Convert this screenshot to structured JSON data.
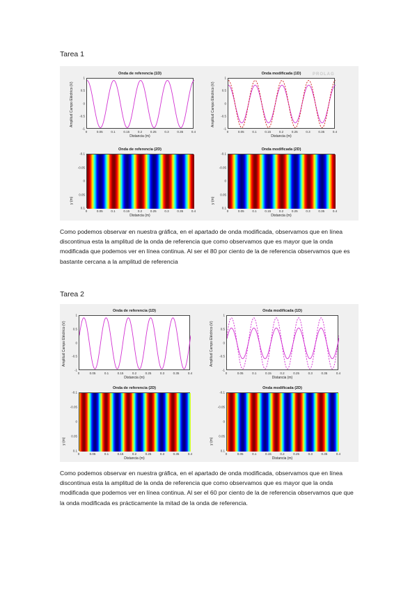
{
  "tarea1": {
    "heading": "Tarea 1",
    "watermark": "PROLAG",
    "panels": [
      {
        "title": "Onda de referencia (1D)",
        "xlabel": "Distancia (m)",
        "ylabel": "Amplitud Campo Eléctrico (V)",
        "xticks": [
          "0",
          "0.05",
          "0.1",
          "0.15",
          "0.2",
          "0.25",
          "0.3",
          "0.35",
          "0.4"
        ],
        "yticks": [
          "1",
          "0.5",
          "0",
          "-0.5",
          "-1"
        ]
      },
      {
        "title": "Onda modificada (1D)",
        "xlabel": "Distancia (m)",
        "ylabel": "Amplitud Campo Eléctrico (V)",
        "xticks": [
          "0",
          "0.05",
          "0.1",
          "0.15",
          "0.2",
          "0.25",
          "0.3",
          "0.35",
          "0.4"
        ],
        "yticks": [
          "1",
          "0.5",
          "0",
          "-0.5",
          "-1"
        ]
      },
      {
        "title": "Onda de referencia (2D)",
        "xlabel": "Distancia (m)",
        "ylabel": "y (m)",
        "xticks": [
          "0",
          "0.05",
          "0.1",
          "0.15",
          "0.2",
          "0.25",
          "0.3",
          "0.35",
          "0.4"
        ],
        "yticks": [
          "-0.1",
          "-0.05",
          "0",
          "0.05",
          "0.1"
        ]
      },
      {
        "title": "Onda modificada (2D)",
        "xlabel": "Distancia (m)",
        "ylabel": "y (m)",
        "xticks": [
          "0",
          "0.05",
          "0.1",
          "0.15",
          "0.2",
          "0.25",
          "0.3",
          "0.35",
          "0.4"
        ],
        "yticks": [
          "-0.1",
          "-0.05",
          "0",
          "0.05",
          "0.1"
        ]
      }
    ],
    "paragraph": "Como podemos observar en nuestra gráfica, en el apartado de onda modificada, observamos que en línea discontinua esta la amplitud de la onda de referencia que como observamos que es mayor que la onda modificada que podemos ver en línea continua. Al ser el 80 por ciento de la de referencia observamos que es bastante cercana a la amplitud de referencia"
  },
  "tarea2": {
    "heading": "Tarea 2",
    "panels": [
      {
        "title": "Onda de referencia (1D)",
        "xlabel": "Distancia (m)",
        "ylabel": "Amplitud Campo Eléctrico (V)",
        "xticks": [
          "0",
          "0.05",
          "0.1",
          "0.15",
          "0.2",
          "0.25",
          "0.3",
          "0.35",
          "0.4"
        ],
        "yticks": [
          "1",
          "0.5",
          "0",
          "-0.5",
          "-1"
        ]
      },
      {
        "title": "Onda modificada (1D)",
        "xlabel": "Distancia (m)",
        "ylabel": "Amplitud Campo Eléctrico (V)",
        "xticks": [
          "0",
          "0.05",
          "0.1",
          "0.15",
          "0.2",
          "0.25",
          "0.3",
          "0.35",
          "0.4"
        ],
        "yticks": [
          "1",
          "0.5",
          "0",
          "-0.5",
          "-1"
        ]
      },
      {
        "title": "Onda de referencia (2D)",
        "xlabel": "Distancia (m)",
        "ylabel": "y (m)",
        "xticks": [
          "0",
          "0.05",
          "0.1",
          "0.15",
          "0.2",
          "0.25",
          "0.3",
          "0.35",
          "0.4"
        ],
        "yticks": [
          "-0.1",
          "-0.05",
          "0",
          "0.05",
          "0.1"
        ]
      },
      {
        "title": "Onda modificada (2D)",
        "xlabel": "Distancia (m)",
        "ylabel": "y (m)",
        "xticks": [
          "0",
          "0.05",
          "0.1",
          "0.15",
          "0.2",
          "0.25",
          "0.3",
          "0.35",
          "0.4"
        ],
        "yticks": [
          "-0.1",
          "-0.05",
          "0",
          "0.05",
          "0.1"
        ]
      }
    ],
    "paragraph": "Como podemos observar en nuestra gráfica, en el apartado de onda modificada, observamos que en línea discontinua esta la amplitud de la onda de referencia que como observamos que es mayor que la onda modificada que podemos ver en línea continua. Al ser el 60 por ciento de la de referencia observamos que que la onda modificada es prácticamente la mitad de la onda de referencia."
  },
  "chart_data": [
    {
      "type": "line",
      "figure": "tarea1",
      "title": "Onda de referencia (1D)",
      "xlabel": "Distancia (m)",
      "ylabel": "Amplitud Campo Eléctrico (V)",
      "xlim": [
        0,
        0.4
      ],
      "ylim": [
        -1,
        1
      ],
      "wavelength": 0.1,
      "phase": 0,
      "series": [
        {
          "amplitude": 1,
          "style": "solid",
          "color": "#d22fd2"
        }
      ]
    },
    {
      "type": "line",
      "figure": "tarea1",
      "title": "Onda modificada (1D)",
      "xlabel": "Distancia (m)",
      "ylabel": "Amplitud Campo Eléctrico (V)",
      "xlim": [
        0,
        0.4
      ],
      "ylim": [
        -1,
        1
      ],
      "wavelength": 0.1,
      "phase": 0,
      "series": [
        {
          "amplitude": 0.8,
          "style": "solid",
          "color": "#d22fd2"
        },
        {
          "amplitude": 1,
          "style": "dashed",
          "color": "#d22020"
        }
      ]
    },
    {
      "type": "heatmap",
      "figure": "tarea1",
      "title": "Onda de referencia (2D)",
      "xlabel": "Distancia (m)",
      "ylabel": "y (m)",
      "xlim": [
        0,
        0.4
      ],
      "ylim": [
        -0.1,
        0.1
      ],
      "wavelength": 0.1,
      "phase": 0,
      "amplitude": 1,
      "clim": [
        -1,
        1
      ]
    },
    {
      "type": "heatmap",
      "figure": "tarea1",
      "title": "Onda modificada (2D)",
      "xlabel": "Distancia (m)",
      "ylabel": "y (m)",
      "xlim": [
        0,
        0.4
      ],
      "ylim": [
        -0.1,
        0.1
      ],
      "wavelength": 0.1,
      "phase": 0,
      "amplitude": 0.8,
      "clim": [
        -0.8,
        0.8
      ]
    },
    {
      "type": "line",
      "figure": "tarea2",
      "title": "Onda de referencia (1D)",
      "xlabel": "Distancia (m)",
      "ylabel": "Amplitud Campo Eléctrico (V)",
      "xlim": [
        0,
        0.4
      ],
      "ylim": [
        -1,
        1
      ],
      "wavelength": 0.08,
      "phase": 0.2,
      "series": [
        {
          "amplitude": 1,
          "style": "solid",
          "color": "#d22fd2"
        }
      ]
    },
    {
      "type": "line",
      "figure": "tarea2",
      "title": "Onda modificada (1D)",
      "xlabel": "Distancia (m)",
      "ylabel": "Amplitud Campo Eléctrico (V)",
      "xlim": [
        0,
        0.4
      ],
      "ylim": [
        -1,
        1
      ],
      "wavelength": 0.08,
      "phase": 0.2,
      "series": [
        {
          "amplitude": 0.6,
          "style": "solid",
          "color": "#d22fd2"
        },
        {
          "amplitude": 1,
          "style": "dashed",
          "color": "#d22fd2"
        }
      ]
    },
    {
      "type": "heatmap",
      "figure": "tarea2",
      "title": "Onda de referencia (2D)",
      "xlabel": "Distancia (m)",
      "ylabel": "y (m)",
      "xlim": [
        0,
        0.4
      ],
      "ylim": [
        -0.1,
        0.1
      ],
      "wavelength": 0.08,
      "phase": 0.2,
      "amplitude": 1,
      "clim": [
        -1,
        1
      ]
    },
    {
      "type": "heatmap",
      "figure": "tarea2",
      "title": "Onda modificada (2D)",
      "xlabel": "Distancia (m)",
      "ylabel": "y (m)",
      "xlim": [
        0,
        0.4
      ],
      "ylim": [
        -0.1,
        0.1
      ],
      "wavelength": 0.08,
      "phase": 0.2,
      "amplitude": 0.6,
      "clim": [
        -0.6,
        0.6
      ]
    }
  ]
}
